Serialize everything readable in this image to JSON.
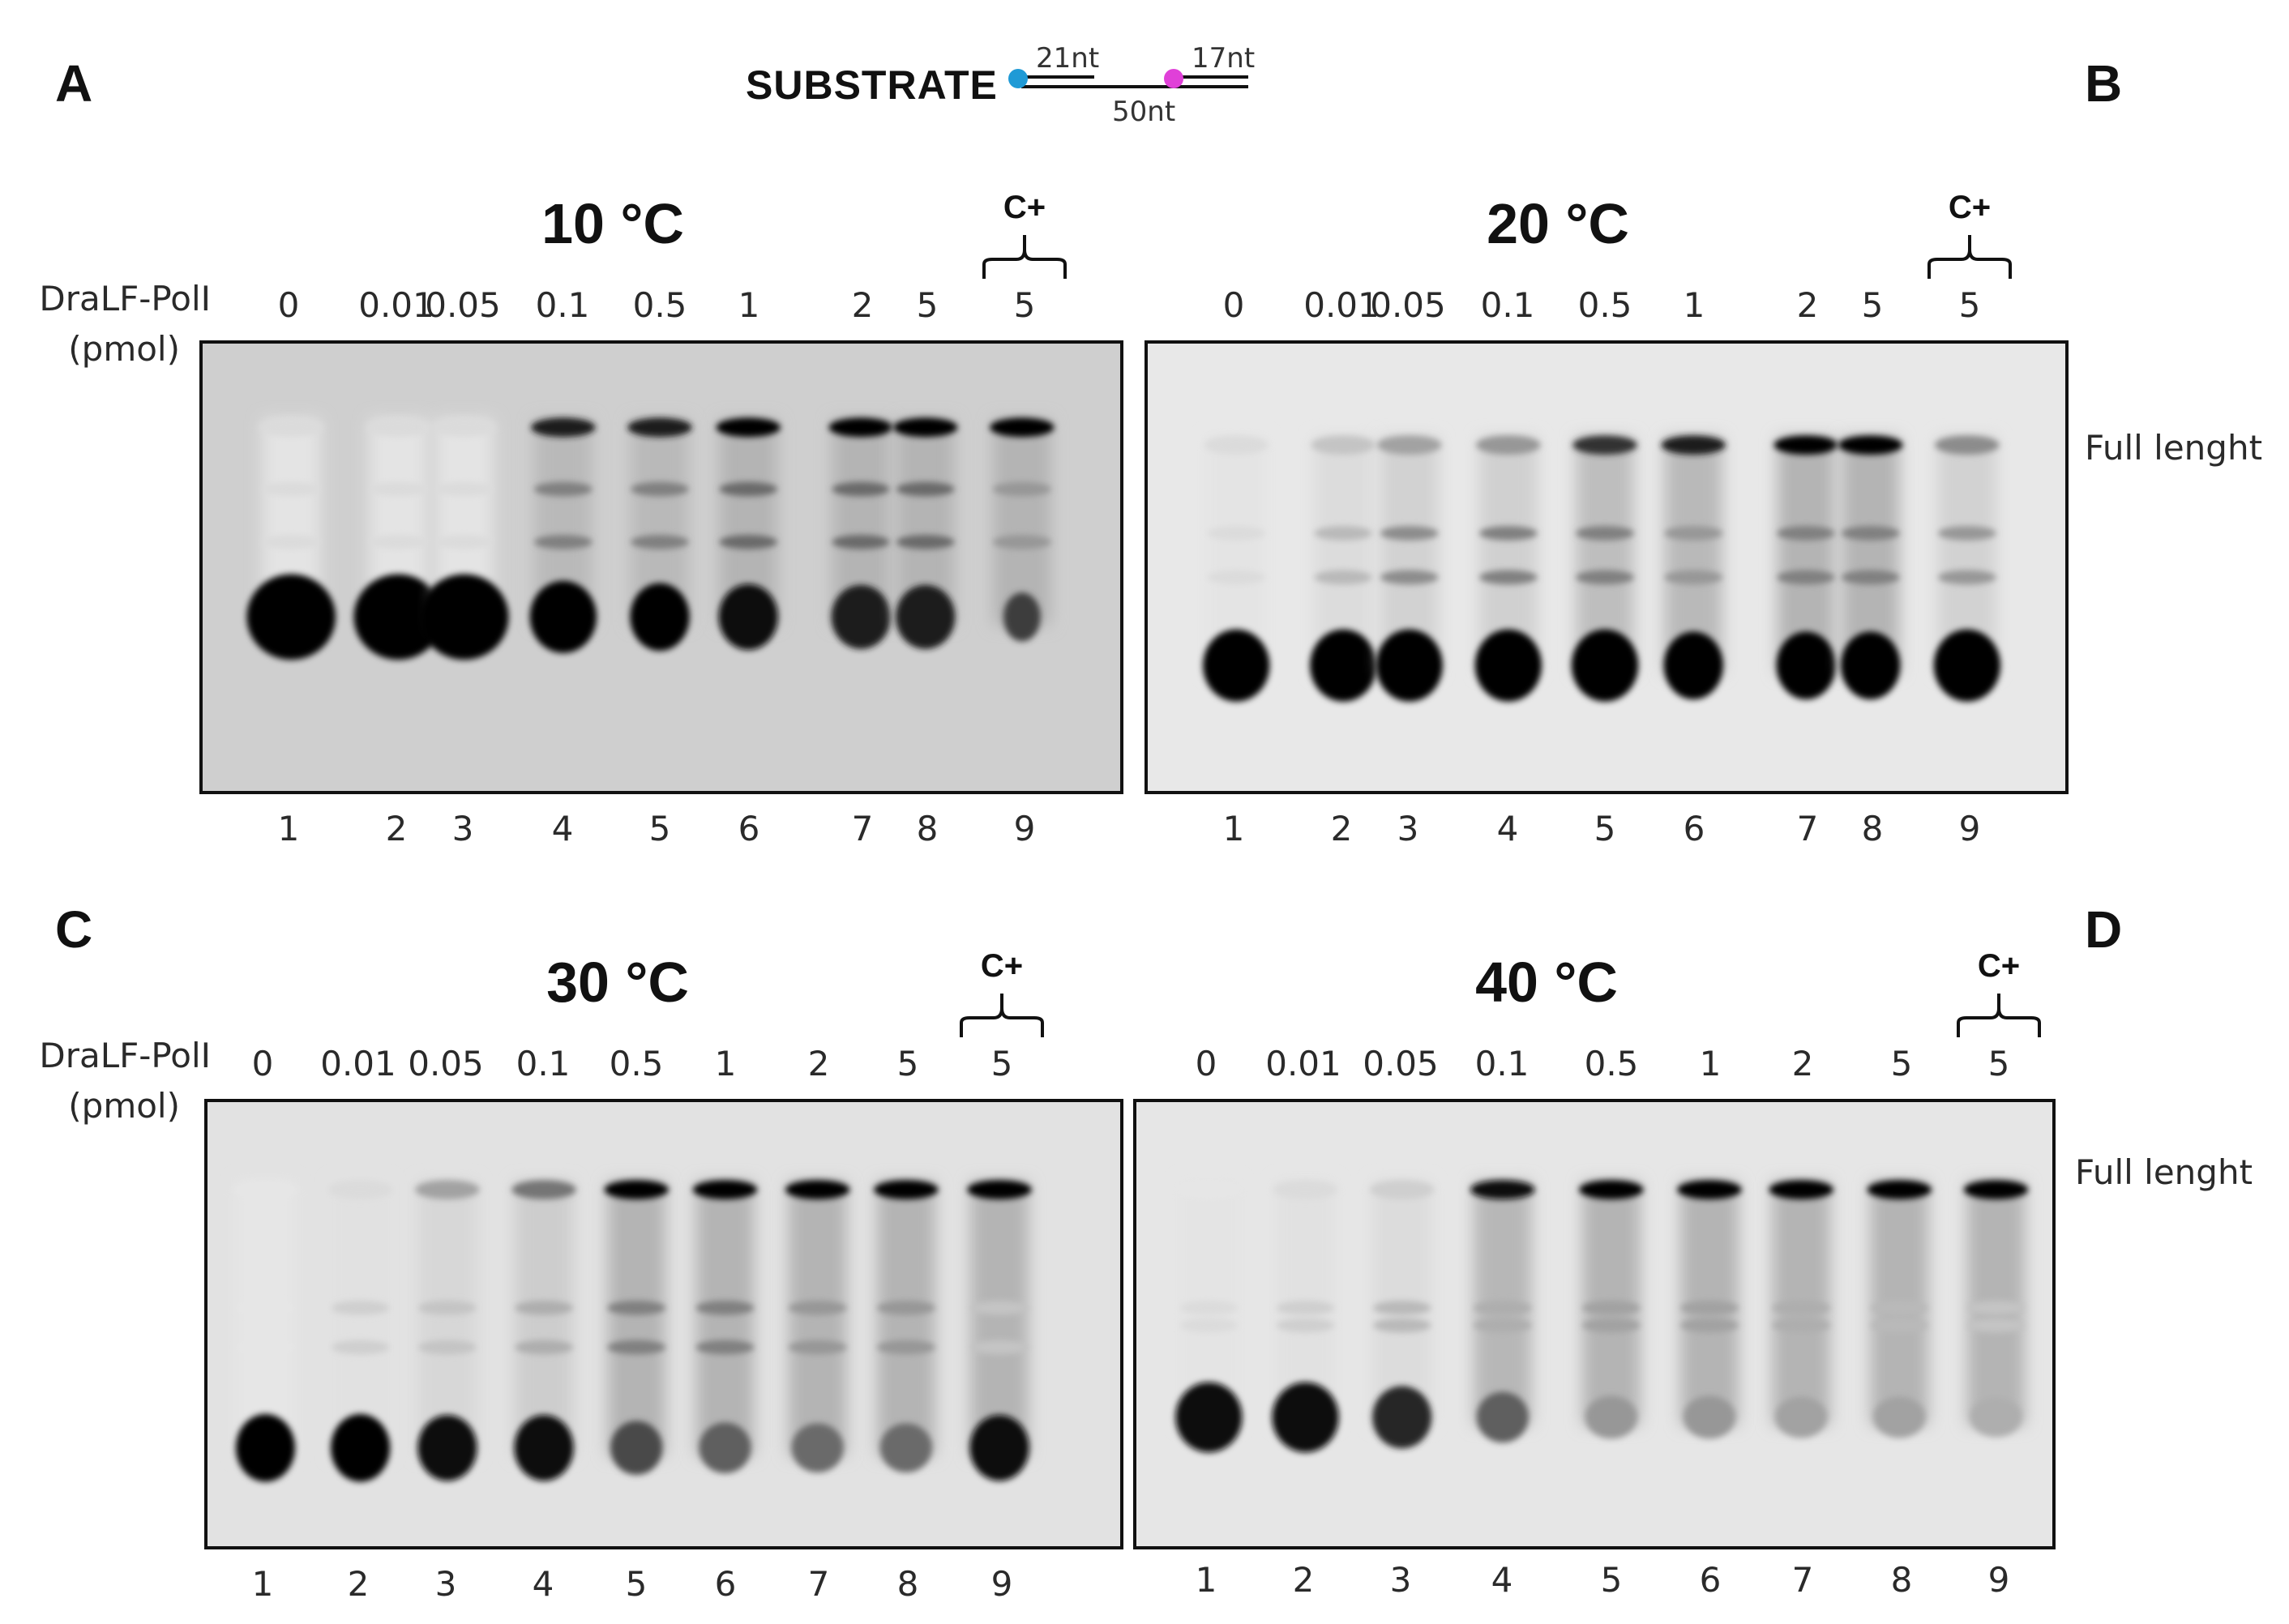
{
  "panel_letters": [
    "A",
    "B",
    "C",
    "D"
  ],
  "substrate": {
    "label": "SUBSTRATE",
    "primer_label": "21nt",
    "downstream_label": "17nt",
    "template_label": "50nt",
    "colors": {
      "primer_label_dot": "#1f9ad6",
      "downstream_label_dot": "#e040d8"
    }
  },
  "axis": {
    "enzyme_label": "DraLF-PolI",
    "unit_label": "(pmol)"
  },
  "full_length_label": "Full lenght",
  "control_label": "C+",
  "concentrations": [
    "0",
    "0.01",
    "0.05",
    "0.1",
    "0.5",
    "1",
    "2",
    "5",
    "5"
  ],
  "lanes": [
    "1",
    "2",
    "3",
    "4",
    "5",
    "6",
    "7",
    "8",
    "9"
  ],
  "gels": [
    {
      "id": "A",
      "temperature": "10 °C",
      "background": "#cfcfcf"
    },
    {
      "id": "B",
      "temperature": "20 °C",
      "background": "#e8e8e8"
    },
    {
      "id": "C",
      "temperature": "30 °C",
      "background": "#e2e2e2"
    },
    {
      "id": "D",
      "temperature": "40 °C",
      "background": "#e6e6e6"
    }
  ]
}
